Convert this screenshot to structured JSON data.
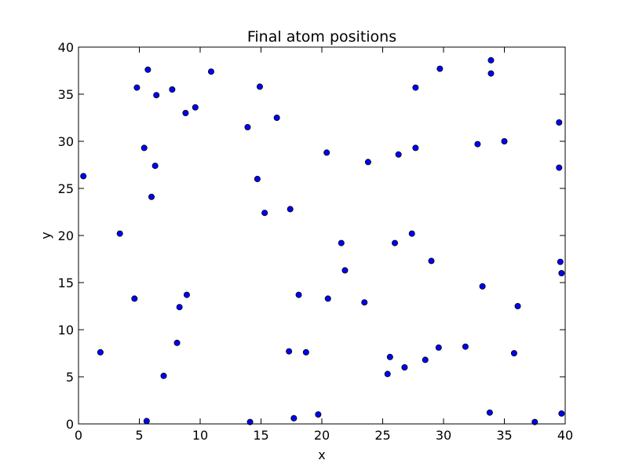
{
  "chart_data": {
    "type": "scatter",
    "title": "Final atom positions",
    "xlabel": "x",
    "ylabel": "y",
    "xlim": [
      0,
      40
    ],
    "ylim": [
      0,
      40
    ],
    "xticks": [
      0,
      5,
      10,
      15,
      20,
      25,
      30,
      35,
      40
    ],
    "yticks": [
      0,
      5,
      10,
      15,
      20,
      25,
      30,
      35,
      40
    ],
    "grid": false,
    "point_color": "#0000ff",
    "points": [
      {
        "x": 0.4,
        "y": 26.3
      },
      {
        "x": 1.8,
        "y": 7.6
      },
      {
        "x": 3.4,
        "y": 20.2
      },
      {
        "x": 4.6,
        "y": 13.3
      },
      {
        "x": 4.8,
        "y": 35.7
      },
      {
        "x": 5.4,
        "y": 29.3
      },
      {
        "x": 5.6,
        "y": 0.3
      },
      {
        "x": 5.7,
        "y": 37.6
      },
      {
        "x": 6.0,
        "y": 24.1
      },
      {
        "x": 6.3,
        "y": 27.4
      },
      {
        "x": 6.4,
        "y": 34.9
      },
      {
        "x": 7.0,
        "y": 5.1
      },
      {
        "x": 7.7,
        "y": 35.5
      },
      {
        "x": 8.1,
        "y": 8.6
      },
      {
        "x": 8.3,
        "y": 12.4
      },
      {
        "x": 8.8,
        "y": 33.0
      },
      {
        "x": 8.9,
        "y": 13.7
      },
      {
        "x": 9.6,
        "y": 33.6
      },
      {
        "x": 10.9,
        "y": 37.4
      },
      {
        "x": 13.9,
        "y": 31.5
      },
      {
        "x": 14.1,
        "y": 0.2
      },
      {
        "x": 14.7,
        "y": 26.0
      },
      {
        "x": 14.9,
        "y": 35.8
      },
      {
        "x": 15.3,
        "y": 22.4
      },
      {
        "x": 16.3,
        "y": 32.5
      },
      {
        "x": 17.3,
        "y": 7.7
      },
      {
        "x": 17.4,
        "y": 22.8
      },
      {
        "x": 17.7,
        "y": 0.6
      },
      {
        "x": 18.1,
        "y": 13.7
      },
      {
        "x": 18.7,
        "y": 7.6
      },
      {
        "x": 19.7,
        "y": 1.0
      },
      {
        "x": 20.4,
        "y": 28.8
      },
      {
        "x": 20.5,
        "y": 13.3
      },
      {
        "x": 21.6,
        "y": 19.2
      },
      {
        "x": 21.9,
        "y": 16.3
      },
      {
        "x": 23.5,
        "y": 12.9
      },
      {
        "x": 23.8,
        "y": 27.8
      },
      {
        "x": 25.4,
        "y": 5.3
      },
      {
        "x": 25.6,
        "y": 7.1
      },
      {
        "x": 26.0,
        "y": 19.2
      },
      {
        "x": 26.3,
        "y": 28.6
      },
      {
        "x": 26.8,
        "y": 6.0
      },
      {
        "x": 27.4,
        "y": 20.2
      },
      {
        "x": 27.7,
        "y": 35.7
      },
      {
        "x": 27.7,
        "y": 29.3
      },
      {
        "x": 28.5,
        "y": 6.8
      },
      {
        "x": 29.0,
        "y": 17.3
      },
      {
        "x": 29.6,
        "y": 8.1
      },
      {
        "x": 29.7,
        "y": 37.7
      },
      {
        "x": 31.8,
        "y": 8.2
      },
      {
        "x": 32.8,
        "y": 29.7
      },
      {
        "x": 33.2,
        "y": 14.6
      },
      {
        "x": 33.8,
        "y": 1.2
      },
      {
        "x": 33.9,
        "y": 38.6
      },
      {
        "x": 33.9,
        "y": 37.2
      },
      {
        "x": 35.0,
        "y": 30.0
      },
      {
        "x": 35.8,
        "y": 7.5
      },
      {
        "x": 36.1,
        "y": 12.5
      },
      {
        "x": 37.5,
        "y": 0.2
      },
      {
        "x": 39.5,
        "y": 32.0
      },
      {
        "x": 39.5,
        "y": 27.2
      },
      {
        "x": 39.6,
        "y": 17.2
      },
      {
        "x": 39.7,
        "y": 16.0
      },
      {
        "x": 39.7,
        "y": 1.1
      }
    ]
  }
}
